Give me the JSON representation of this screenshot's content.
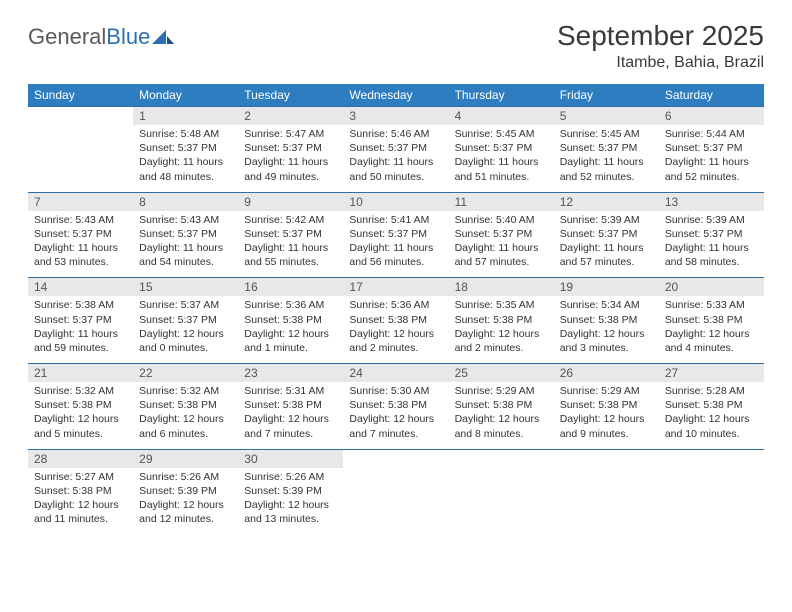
{
  "logo": {
    "text1": "General",
    "text2": "Blue"
  },
  "title": "September 2025",
  "location": "Itambe, Bahia, Brazil",
  "colors": {
    "header_bg": "#2d7dc0",
    "header_text": "#ffffff",
    "daynum_bg": "#e8e8e8",
    "border": "#2d6fa0",
    "logo_gray": "#5a5a5a",
    "logo_blue": "#2d6fb5"
  },
  "day_headers": [
    "Sunday",
    "Monday",
    "Tuesday",
    "Wednesday",
    "Thursday",
    "Friday",
    "Saturday"
  ],
  "weeks": [
    [
      {
        "n": "",
        "sr": "",
        "ss": "",
        "dl": ""
      },
      {
        "n": "1",
        "sr": "Sunrise: 5:48 AM",
        "ss": "Sunset: 5:37 PM",
        "dl": "Daylight: 11 hours and 48 minutes."
      },
      {
        "n": "2",
        "sr": "Sunrise: 5:47 AM",
        "ss": "Sunset: 5:37 PM",
        "dl": "Daylight: 11 hours and 49 minutes."
      },
      {
        "n": "3",
        "sr": "Sunrise: 5:46 AM",
        "ss": "Sunset: 5:37 PM",
        "dl": "Daylight: 11 hours and 50 minutes."
      },
      {
        "n": "4",
        "sr": "Sunrise: 5:45 AM",
        "ss": "Sunset: 5:37 PM",
        "dl": "Daylight: 11 hours and 51 minutes."
      },
      {
        "n": "5",
        "sr": "Sunrise: 5:45 AM",
        "ss": "Sunset: 5:37 PM",
        "dl": "Daylight: 11 hours and 52 minutes."
      },
      {
        "n": "6",
        "sr": "Sunrise: 5:44 AM",
        "ss": "Sunset: 5:37 PM",
        "dl": "Daylight: 11 hours and 52 minutes."
      }
    ],
    [
      {
        "n": "7",
        "sr": "Sunrise: 5:43 AM",
        "ss": "Sunset: 5:37 PM",
        "dl": "Daylight: 11 hours and 53 minutes."
      },
      {
        "n": "8",
        "sr": "Sunrise: 5:43 AM",
        "ss": "Sunset: 5:37 PM",
        "dl": "Daylight: 11 hours and 54 minutes."
      },
      {
        "n": "9",
        "sr": "Sunrise: 5:42 AM",
        "ss": "Sunset: 5:37 PM",
        "dl": "Daylight: 11 hours and 55 minutes."
      },
      {
        "n": "10",
        "sr": "Sunrise: 5:41 AM",
        "ss": "Sunset: 5:37 PM",
        "dl": "Daylight: 11 hours and 56 minutes."
      },
      {
        "n": "11",
        "sr": "Sunrise: 5:40 AM",
        "ss": "Sunset: 5:37 PM",
        "dl": "Daylight: 11 hours and 57 minutes."
      },
      {
        "n": "12",
        "sr": "Sunrise: 5:39 AM",
        "ss": "Sunset: 5:37 PM",
        "dl": "Daylight: 11 hours and 57 minutes."
      },
      {
        "n": "13",
        "sr": "Sunrise: 5:39 AM",
        "ss": "Sunset: 5:37 PM",
        "dl": "Daylight: 11 hours and 58 minutes."
      }
    ],
    [
      {
        "n": "14",
        "sr": "Sunrise: 5:38 AM",
        "ss": "Sunset: 5:37 PM",
        "dl": "Daylight: 11 hours and 59 minutes."
      },
      {
        "n": "15",
        "sr": "Sunrise: 5:37 AM",
        "ss": "Sunset: 5:37 PM",
        "dl": "Daylight: 12 hours and 0 minutes."
      },
      {
        "n": "16",
        "sr": "Sunrise: 5:36 AM",
        "ss": "Sunset: 5:38 PM",
        "dl": "Daylight: 12 hours and 1 minute."
      },
      {
        "n": "17",
        "sr": "Sunrise: 5:36 AM",
        "ss": "Sunset: 5:38 PM",
        "dl": "Daylight: 12 hours and 2 minutes."
      },
      {
        "n": "18",
        "sr": "Sunrise: 5:35 AM",
        "ss": "Sunset: 5:38 PM",
        "dl": "Daylight: 12 hours and 2 minutes."
      },
      {
        "n": "19",
        "sr": "Sunrise: 5:34 AM",
        "ss": "Sunset: 5:38 PM",
        "dl": "Daylight: 12 hours and 3 minutes."
      },
      {
        "n": "20",
        "sr": "Sunrise: 5:33 AM",
        "ss": "Sunset: 5:38 PM",
        "dl": "Daylight: 12 hours and 4 minutes."
      }
    ],
    [
      {
        "n": "21",
        "sr": "Sunrise: 5:32 AM",
        "ss": "Sunset: 5:38 PM",
        "dl": "Daylight: 12 hours and 5 minutes."
      },
      {
        "n": "22",
        "sr": "Sunrise: 5:32 AM",
        "ss": "Sunset: 5:38 PM",
        "dl": "Daylight: 12 hours and 6 minutes."
      },
      {
        "n": "23",
        "sr": "Sunrise: 5:31 AM",
        "ss": "Sunset: 5:38 PM",
        "dl": "Daylight: 12 hours and 7 minutes."
      },
      {
        "n": "24",
        "sr": "Sunrise: 5:30 AM",
        "ss": "Sunset: 5:38 PM",
        "dl": "Daylight: 12 hours and 7 minutes."
      },
      {
        "n": "25",
        "sr": "Sunrise: 5:29 AM",
        "ss": "Sunset: 5:38 PM",
        "dl": "Daylight: 12 hours and 8 minutes."
      },
      {
        "n": "26",
        "sr": "Sunrise: 5:29 AM",
        "ss": "Sunset: 5:38 PM",
        "dl": "Daylight: 12 hours and 9 minutes."
      },
      {
        "n": "27",
        "sr": "Sunrise: 5:28 AM",
        "ss": "Sunset: 5:38 PM",
        "dl": "Daylight: 12 hours and 10 minutes."
      }
    ],
    [
      {
        "n": "28",
        "sr": "Sunrise: 5:27 AM",
        "ss": "Sunset: 5:38 PM",
        "dl": "Daylight: 12 hours and 11 minutes."
      },
      {
        "n": "29",
        "sr": "Sunrise: 5:26 AM",
        "ss": "Sunset: 5:39 PM",
        "dl": "Daylight: 12 hours and 12 minutes."
      },
      {
        "n": "30",
        "sr": "Sunrise: 5:26 AM",
        "ss": "Sunset: 5:39 PM",
        "dl": "Daylight: 12 hours and 13 minutes."
      },
      {
        "n": "",
        "sr": "",
        "ss": "",
        "dl": ""
      },
      {
        "n": "",
        "sr": "",
        "ss": "",
        "dl": ""
      },
      {
        "n": "",
        "sr": "",
        "ss": "",
        "dl": ""
      },
      {
        "n": "",
        "sr": "",
        "ss": "",
        "dl": ""
      }
    ]
  ]
}
